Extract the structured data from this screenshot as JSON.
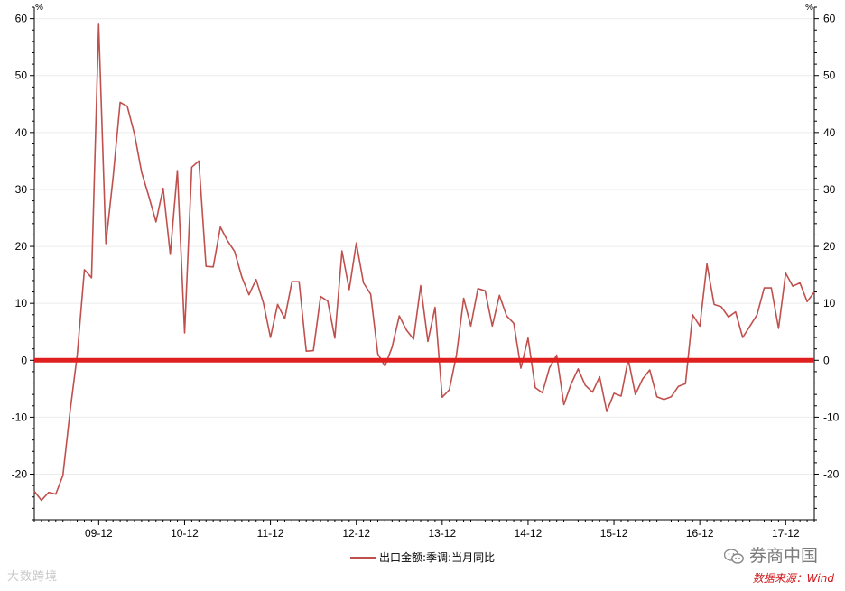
{
  "chart_data": {
    "type": "line",
    "y_unit_left": "%",
    "y_unit_right": "%",
    "ylim": [
      -28,
      62
    ],
    "yticks": [
      -20,
      -10,
      0,
      10,
      20,
      30,
      40,
      50,
      60
    ],
    "x_tick_labels": [
      "09-12",
      "10-12",
      "11-12",
      "12-12",
      "13-12",
      "14-12",
      "15-12",
      "16-12",
      "17-12"
    ],
    "x_start_index": 0,
    "reference_line": {
      "y": 0,
      "color": "#e0201e"
    },
    "series": [
      {
        "name": "出口金额:季调:当月同比",
        "color": "#c0504d",
        "values": [
          -23.0,
          -24.6,
          -23.2,
          -23.5,
          -20.2,
          -9.0,
          1.0,
          15.9,
          14.5,
          59.0,
          20.5,
          32.0,
          45.3,
          44.6,
          39.7,
          33.0,
          28.8,
          24.3,
          30.2,
          18.6,
          33.3,
          4.8,
          33.9,
          35.0,
          16.5,
          16.4,
          23.4,
          21.0,
          19.1,
          14.6,
          11.5,
          14.2,
          10.1,
          4.0,
          9.8,
          7.3,
          13.8,
          13.8,
          1.6,
          1.7,
          11.2,
          10.4,
          3.9,
          19.2,
          12.4,
          20.6,
          13.6,
          11.6,
          1.1,
          -1.0,
          2.3,
          7.8,
          5.3,
          3.7,
          13.1,
          3.3,
          9.3,
          -6.5,
          -5.2,
          1.0,
          10.9,
          6.0,
          12.6,
          12.2,
          6.0,
          11.4,
          7.8,
          6.5,
          -1.4,
          3.9,
          -4.8,
          -5.7,
          -1.3,
          0.9,
          -7.8,
          -4.2,
          -1.5,
          -4.4,
          -5.6,
          -2.9,
          -9.0,
          -5.8,
          -6.3,
          0.2,
          -6.0,
          -3.3,
          -1.7,
          -6.4,
          -6.9,
          -6.4,
          -4.6,
          -4.1,
          8.0,
          6.0,
          16.9,
          9.8,
          9.4,
          7.6,
          8.5,
          4.0,
          6.0,
          8.0,
          12.7,
          12.7,
          5.6,
          15.3,
          13.0,
          13.6,
          10.3,
          12.0
        ]
      }
    ],
    "legend": {
      "position": "bottom-center"
    }
  },
  "watermarks": {
    "left": "大数跨境",
    "right": "券商中国"
  },
  "source_note": "数据来源：Wind"
}
